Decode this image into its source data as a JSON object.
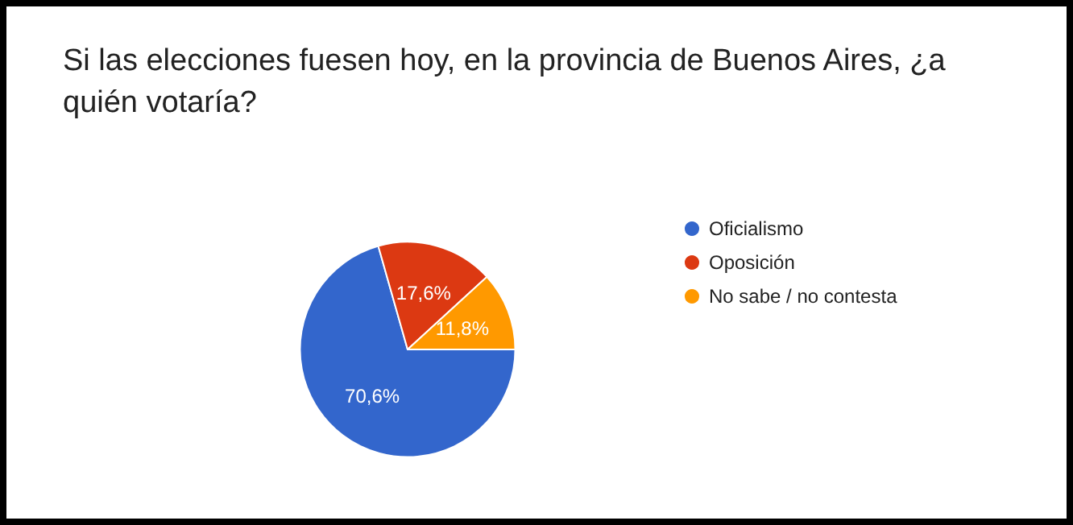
{
  "chart_data": {
    "type": "pie",
    "title": "Si las elecciones fuesen hoy, en la provincia de Buenos Aires, ¿a quién votaría?",
    "categories": [
      "Oficialismo",
      "Oposición",
      "No sabe / no contesta"
    ],
    "values": [
      70.6,
      17.6,
      11.8
    ],
    "value_labels": [
      "70,6%",
      "17,6%",
      "11,8%"
    ],
    "colors": [
      "#3366cc",
      "#dc3912",
      "#ff9900"
    ],
    "legend": "right"
  }
}
